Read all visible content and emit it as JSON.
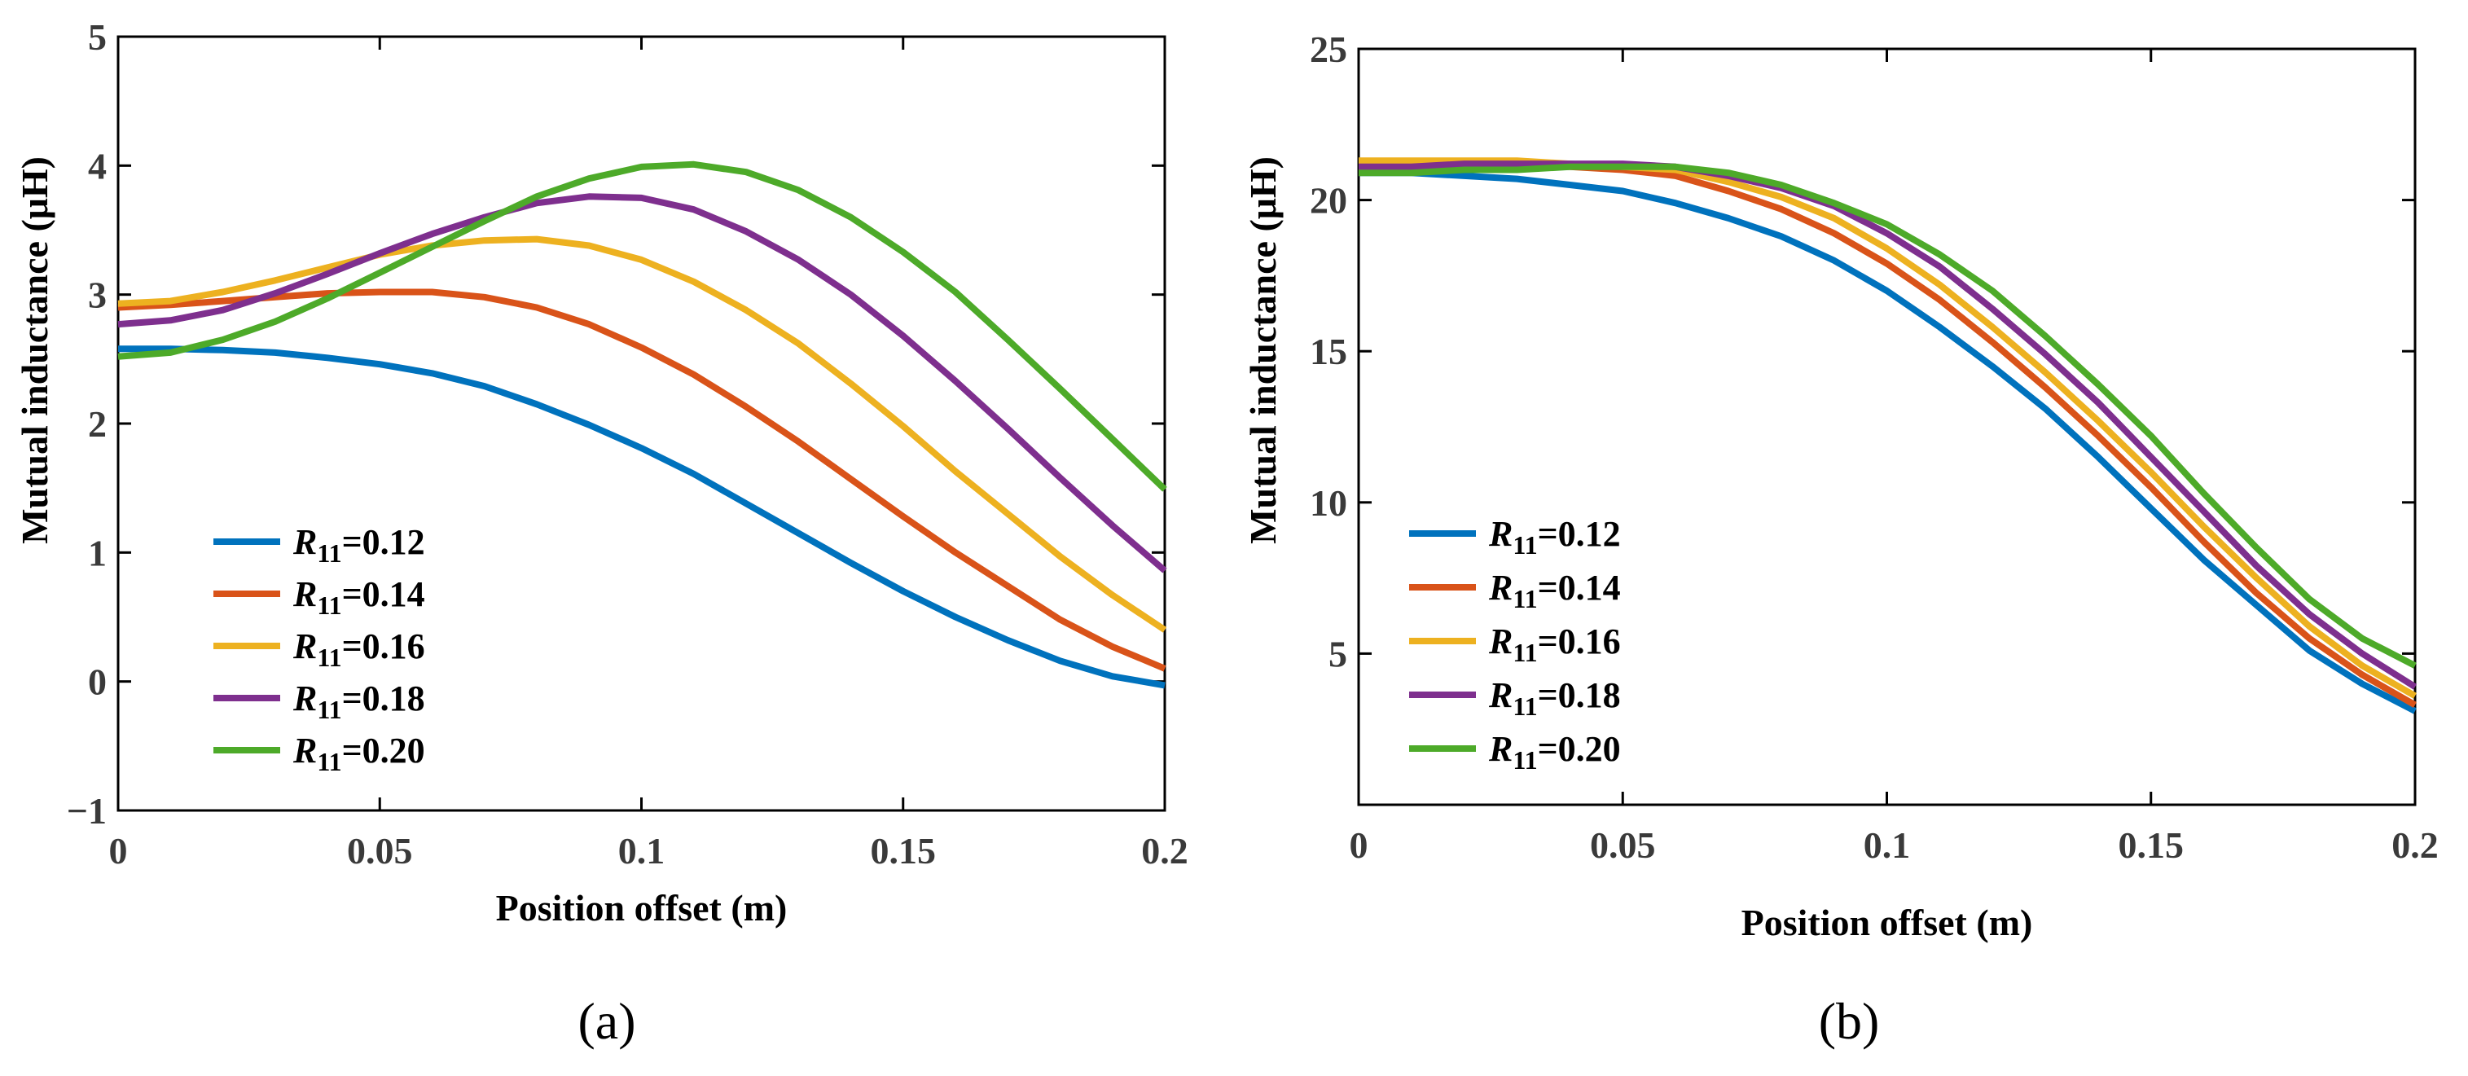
{
  "chart_data": [
    {
      "type": "line",
      "panel_label": "(a)",
      "xlabel": "Position offset (m)",
      "ylabel": "Mutual inductance (μH)",
      "xlim": [
        0,
        0.2
      ],
      "ylim": [
        -1,
        5
      ],
      "xticks": [
        0,
        0.05,
        0.1,
        0.15,
        0.2
      ],
      "xtick_labels": [
        "0",
        "0.05",
        "0.1",
        "0.15",
        "0.2"
      ],
      "yticks": [
        -1,
        0,
        1,
        2,
        3,
        4,
        5
      ],
      "ytick_labels": [
        "−1",
        "0",
        "1",
        "2",
        "3",
        "4",
        "5"
      ],
      "legend_position": "lower-left",
      "x": [
        0,
        0.01,
        0.02,
        0.03,
        0.04,
        0.05,
        0.06,
        0.07,
        0.08,
        0.09,
        0.1,
        0.11,
        0.12,
        0.13,
        0.14,
        0.15,
        0.16,
        0.17,
        0.18,
        0.19,
        0.2
      ],
      "series": [
        {
          "name": "R11=0.12",
          "label_var": "R",
          "label_sub": "11",
          "label_val": "=0.12",
          "color": "#0072BD",
          "values": [
            2.58,
            2.58,
            2.57,
            2.55,
            2.51,
            2.46,
            2.39,
            2.29,
            2.15,
            1.99,
            1.81,
            1.61,
            1.38,
            1.15,
            0.92,
            0.7,
            0.5,
            0.32,
            0.16,
            0.04,
            -0.03
          ]
        },
        {
          "name": "R11=0.14",
          "label_var": "R",
          "label_sub": "11",
          "label_val": "=0.14",
          "color": "#D95319",
          "values": [
            2.9,
            2.92,
            2.95,
            2.98,
            3.01,
            3.02,
            3.02,
            2.98,
            2.9,
            2.77,
            2.59,
            2.38,
            2.13,
            1.86,
            1.57,
            1.28,
            1.0,
            0.74,
            0.48,
            0.27,
            0.1
          ]
        },
        {
          "name": "R11=0.16",
          "label_var": "R",
          "label_sub": "11",
          "label_val": "=0.16",
          "color": "#EDB120",
          "values": [
            2.93,
            2.95,
            3.02,
            3.11,
            3.21,
            3.31,
            3.38,
            3.42,
            3.43,
            3.38,
            3.27,
            3.1,
            2.88,
            2.62,
            2.31,
            1.98,
            1.63,
            1.3,
            0.97,
            0.67,
            0.4
          ]
        },
        {
          "name": "R11=0.18",
          "label_var": "R",
          "label_sub": "11",
          "label_val": "=0.18",
          "color": "#7E2F8E",
          "values": [
            2.77,
            2.8,
            2.88,
            3.01,
            3.16,
            3.32,
            3.47,
            3.6,
            3.71,
            3.76,
            3.75,
            3.66,
            3.49,
            3.27,
            3.0,
            2.68,
            2.33,
            1.96,
            1.58,
            1.21,
            0.86
          ]
        },
        {
          "name": "R11=0.20",
          "label_var": "R",
          "label_sub": "11",
          "label_val": "=0.20",
          "color": "#4DAA29",
          "values": [
            2.52,
            2.55,
            2.65,
            2.79,
            2.97,
            3.17,
            3.37,
            3.57,
            3.76,
            3.9,
            3.99,
            4.01,
            3.95,
            3.81,
            3.6,
            3.33,
            3.02,
            2.65,
            2.27,
            1.88,
            1.49
          ]
        }
      ]
    },
    {
      "type": "line",
      "panel_label": "(b)",
      "xlabel": "Position offset (m)",
      "ylabel": "Mutual inductance (μH)",
      "xlim": [
        0,
        0.2
      ],
      "ylim": [
        0,
        25
      ],
      "xticks": [
        0,
        0.05,
        0.1,
        0.15,
        0.2
      ],
      "xtick_labels": [
        "0",
        "0.05",
        "0.1",
        "0.15",
        "0.2"
      ],
      "yticks": [
        5,
        10,
        15,
        20,
        25
      ],
      "ytick_labels": [
        "5",
        "10",
        "15",
        "20",
        "25"
      ],
      "legend_position": "lower-left",
      "x": [
        0,
        0.01,
        0.02,
        0.03,
        0.04,
        0.05,
        0.06,
        0.07,
        0.08,
        0.09,
        0.1,
        0.11,
        0.12,
        0.13,
        0.14,
        0.15,
        0.16,
        0.17,
        0.18,
        0.19,
        0.2
      ],
      "series": [
        {
          "name": "R11=0.12",
          "label_var": "R",
          "label_sub": "11",
          "label_val": "=0.12",
          "color": "#0072BD",
          "values": [
            20.9,
            20.9,
            20.8,
            20.7,
            20.5,
            20.3,
            19.9,
            19.4,
            18.8,
            18.0,
            17.0,
            15.8,
            14.5,
            13.1,
            11.5,
            9.8,
            8.1,
            6.6,
            5.1,
            4.0,
            3.1
          ]
        },
        {
          "name": "R11=0.14",
          "label_var": "R",
          "label_sub": "11",
          "label_val": "=0.14",
          "color": "#D95319",
          "values": [
            21.1,
            21.1,
            21.1,
            21.1,
            21.1,
            21.0,
            20.8,
            20.3,
            19.7,
            18.9,
            17.9,
            16.7,
            15.3,
            13.8,
            12.2,
            10.5,
            8.7,
            7.0,
            5.5,
            4.3,
            3.3
          ]
        },
        {
          "name": "R11=0.16",
          "label_var": "R",
          "label_sub": "11",
          "label_val": "=0.16",
          "color": "#EDB120",
          "values": [
            21.3,
            21.3,
            21.3,
            21.3,
            21.2,
            21.1,
            21.0,
            20.6,
            20.1,
            19.4,
            18.4,
            17.2,
            15.8,
            14.3,
            12.7,
            11.0,
            9.2,
            7.5,
            5.9,
            4.6,
            3.6
          ]
        },
        {
          "name": "R11=0.18",
          "label_var": "R",
          "label_sub": "11",
          "label_val": "=0.18",
          "color": "#7E2F8E",
          "values": [
            21.1,
            21.1,
            21.2,
            21.2,
            21.2,
            21.2,
            21.1,
            20.8,
            20.4,
            19.8,
            18.9,
            17.8,
            16.4,
            14.9,
            13.3,
            11.5,
            9.7,
            7.9,
            6.3,
            5.0,
            3.9
          ]
        },
        {
          "name": "R11=0.20",
          "label_var": "R",
          "label_sub": "11",
          "label_val": "=0.20",
          "color": "#4DAA29",
          "values": [
            20.9,
            20.9,
            21.0,
            21.0,
            21.1,
            21.1,
            21.1,
            20.9,
            20.5,
            19.9,
            19.2,
            18.2,
            17.0,
            15.5,
            13.9,
            12.2,
            10.3,
            8.5,
            6.8,
            5.5,
            4.6
          ]
        }
      ]
    }
  ]
}
